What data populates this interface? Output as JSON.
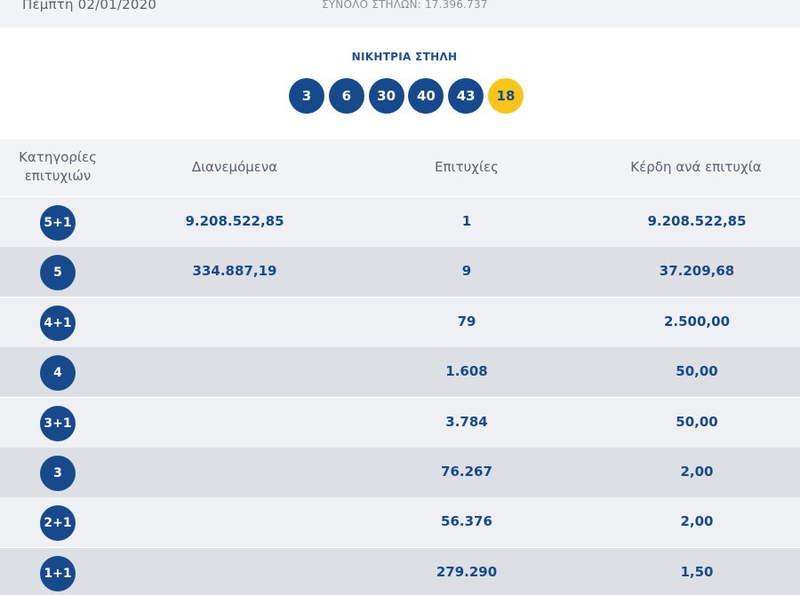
{
  "header": {
    "date": "Πέμπτη 02/01/2020",
    "total_columns": "ΣΥΝΟΛΟ ΣΤΗΛΩΝ: 17.396.737"
  },
  "winning": {
    "title": "ΝΙΚΗΤΡΙΑ ΣΤΗΛΗ",
    "numbers": [
      "3",
      "6",
      "30",
      "40",
      "43"
    ],
    "joker": "18"
  },
  "table": {
    "headers": {
      "category_line1": "Κατηγορίες",
      "category_line2": "επιτυχιών",
      "distributed": "Διανεμόμενα",
      "winners": "Επιτυχίες",
      "prize": "Κέρδη ανά επιτυχία"
    },
    "rows": [
      {
        "category": "5+1",
        "distributed": "9.208.522,85",
        "winners": "1",
        "prize": "9.208.522,85"
      },
      {
        "category": "5",
        "distributed": "334.887,19",
        "winners": "9",
        "prize": "37.209,68"
      },
      {
        "category": "4+1",
        "distributed": "",
        "winners": "79",
        "prize": "2.500,00"
      },
      {
        "category": "4",
        "distributed": "",
        "winners": "1.608",
        "prize": "50,00"
      },
      {
        "category": "3+1",
        "distributed": "",
        "winners": "3.784",
        "prize": "50,00"
      },
      {
        "category": "3",
        "distributed": "",
        "winners": "76.267",
        "prize": "2,00"
      },
      {
        "category": "2+1",
        "distributed": "",
        "winners": "56.376",
        "prize": "2,00"
      },
      {
        "category": "1+1",
        "distributed": "",
        "winners": "279.290",
        "prize": "1,50"
      }
    ]
  },
  "colors": {
    "primary_blue": "#174a8d",
    "joker_yellow": "#f8c51c",
    "row_light": "#eef0f3",
    "row_dark": "#dcdfe4",
    "header_bg": "#f2f3f5"
  }
}
